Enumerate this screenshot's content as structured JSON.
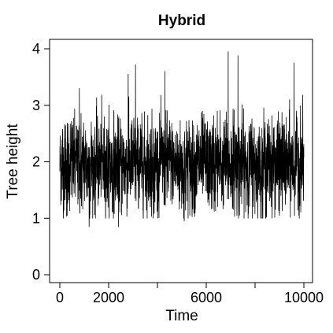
{
  "chart_data": {
    "type": "line",
    "title": "Hybrid",
    "xlabel": "Time",
    "ylabel": "Tree height",
    "xlim": [
      0,
      10000
    ],
    "ylim": [
      0,
      4
    ],
    "xticks": [
      0,
      2000,
      6000,
      10000
    ],
    "xtick_minor": [
      4000,
      8000
    ],
    "yticks": [
      0,
      1,
      2,
      3,
      4
    ],
    "grid": false,
    "legend": "none",
    "series": [
      {
        "color": "#000000",
        "summary": {
          "n_points": 10000,
          "mean": 1.95,
          "typical_band": [
            1.2,
            2.7
          ],
          "min": 0.85,
          "max": 3.95
        },
        "spikes": [
          {
            "x": 300,
            "y": 1.05
          },
          {
            "x": 800,
            "y": 3.3
          },
          {
            "x": 1200,
            "y": 0.85
          },
          {
            "x": 2400,
            "y": 0.85
          },
          {
            "x": 2800,
            "y": 3.55
          },
          {
            "x": 3100,
            "y": 3.72
          },
          {
            "x": 4300,
            "y": 3.6
          },
          {
            "x": 5100,
            "y": 0.95
          },
          {
            "x": 6900,
            "y": 3.95
          },
          {
            "x": 7300,
            "y": 3.88
          },
          {
            "x": 9000,
            "y": 1.05
          },
          {
            "x": 9600,
            "y": 3.75
          }
        ]
      }
    ]
  }
}
